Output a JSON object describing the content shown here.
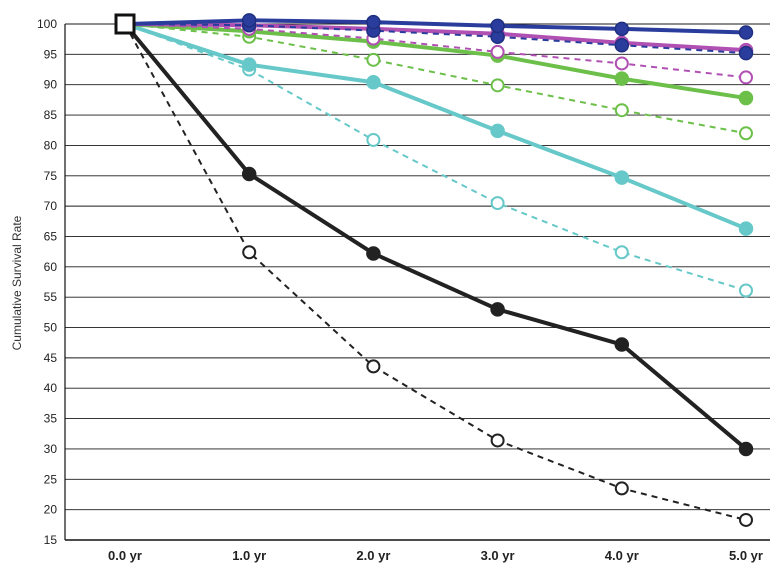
{
  "chart_data": {
    "type": "line",
    "title": "",
    "xlabel": "",
    "ylabel": "Cumulative Survival Rate",
    "categories": [
      "0.0 yr",
      "1.0 yr",
      "2.0 yr",
      "3.0 yr",
      "4.0 yr",
      "5.0 yr"
    ],
    "ylim": [
      15,
      100
    ],
    "yticks": [
      15,
      20,
      25,
      30,
      35,
      40,
      45,
      50,
      55,
      60,
      65,
      70,
      75,
      80,
      85,
      90,
      95,
      100
    ],
    "grid": true,
    "start_marker": "open-square",
    "series": [
      {
        "color": "#2b3d9c",
        "style": "solid",
        "marker": "filled",
        "values": [
          100,
          100.6,
          100.3,
          99.7,
          99.2,
          98.6
        ]
      },
      {
        "color": "#2b3d9c",
        "style": "dashed",
        "marker": "filled",
        "values": [
          100,
          99.8,
          98.9,
          97.9,
          96.5,
          95.2
        ]
      },
      {
        "color": "#b150b3",
        "style": "solid",
        "marker": "filled",
        "values": [
          100,
          99.8,
          99.2,
          98.4,
          96.9,
          95.7
        ]
      },
      {
        "color": "#b150b3",
        "style": "dashed",
        "marker": "open",
        "values": [
          100,
          99.2,
          97.6,
          95.4,
          93.5,
          91.2
        ]
      },
      {
        "color": "#6cc04a",
        "style": "solid",
        "marker": "filled",
        "values": [
          100,
          98.8,
          97.1,
          94.8,
          91.0,
          87.8
        ]
      },
      {
        "color": "#6cc04a",
        "style": "dashed",
        "marker": "open",
        "values": [
          100,
          97.9,
          94.1,
          89.9,
          85.8,
          82.0
        ]
      },
      {
        "color": "#66c8c8",
        "style": "solid",
        "marker": "filled",
        "values": [
          100,
          93.3,
          90.4,
          82.4,
          74.7,
          66.3
        ]
      },
      {
        "color": "#66c8c8",
        "style": "dashed",
        "marker": "open",
        "values": [
          100,
          92.5,
          80.9,
          70.5,
          62.4,
          56.1
        ]
      },
      {
        "color": "#222222",
        "style": "solid",
        "marker": "filled",
        "values": [
          100,
          75.3,
          62.2,
          53.0,
          47.2,
          30.0
        ]
      },
      {
        "color": "#222222",
        "style": "dashed",
        "marker": "open",
        "values": [
          100,
          62.4,
          43.6,
          31.4,
          23.5,
          18.3
        ]
      }
    ]
  }
}
